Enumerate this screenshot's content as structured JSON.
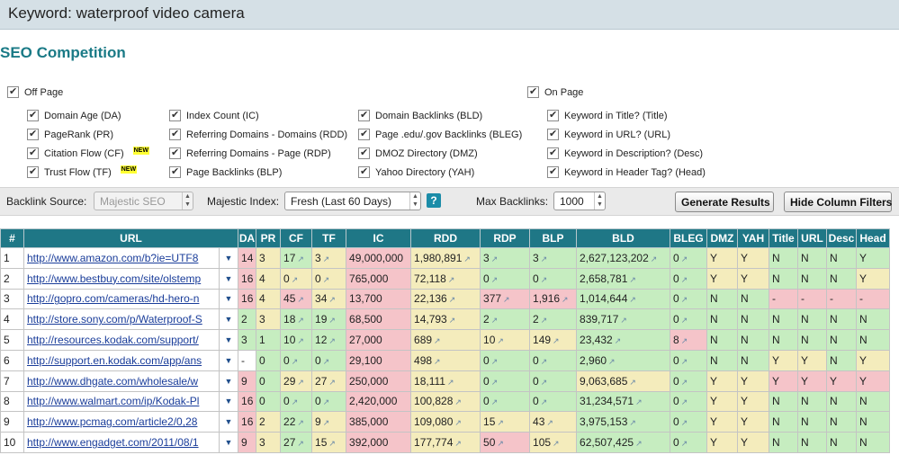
{
  "keyword_bar": {
    "label": "Keyword: waterproof video camera"
  },
  "title": "SEO Competition",
  "off_page": {
    "label": "Off Page",
    "options": [
      {
        "label": "Domain Age (DA)"
      },
      {
        "label": "PageRank (PR)"
      },
      {
        "label": "Citation Flow (CF)",
        "badge": "NEW"
      },
      {
        "label": "Trust Flow (TF)",
        "badge": "NEW"
      },
      {
        "label": "Index Count (IC)"
      },
      {
        "label": "Referring Domains - Domains (RDD)"
      },
      {
        "label": "Referring Domains - Page (RDP)"
      },
      {
        "label": "Page Backlinks (BLP)"
      },
      {
        "label": "Domain Backlinks (BLD)"
      },
      {
        "label": "Page .edu/.gov Backlinks (BLEG)"
      },
      {
        "label": "DMOZ Directory (DMZ)"
      },
      {
        "label": "Yahoo Directory (YAH)"
      }
    ]
  },
  "on_page": {
    "label": "On Page",
    "options": [
      {
        "label": "Keyword in Title? (Title)"
      },
      {
        "label": "Keyword in URL? (URL)"
      },
      {
        "label": "Keyword in Description? (Desc)"
      },
      {
        "label": "Keyword in Header Tag? (Head)"
      }
    ]
  },
  "toolbar": {
    "backlink_source_label": "Backlink Source:",
    "backlink_source_value": "Majestic SEO",
    "majestic_index_label": "Majestic Index:",
    "majestic_index_value": "Fresh (Last 60 Days)",
    "help": "?",
    "max_backlinks_label": "Max Backlinks:",
    "max_backlinks_value": "1000",
    "generate_button": "Generate Results",
    "hide_filters_button": "Hide Column Filters"
  },
  "table": {
    "headers": [
      "#",
      "URL",
      "DA",
      "PR",
      "CF",
      "TF",
      "IC",
      "RDD",
      "RDP",
      "BLP",
      "BLD",
      "BLEG",
      "DMZ",
      "YAH",
      "Title",
      "URL",
      "Desc",
      "Head"
    ],
    "arrow": "↗",
    "dropdown": "▼",
    "rows": [
      {
        "n": "1",
        "url": "http://www.amazon.com/b?ie=UTF8",
        "da": "14",
        "pr": "3",
        "cf": "17",
        "tf": "3",
        "ic": "49,000,000",
        "rdd": "1,980,891",
        "rdp": "3",
        "blp": "3",
        "bld": "2,627,123,202",
        "bleg": "0",
        "dmz": "Y",
        "yah": "Y",
        "title": "N",
        "urlk": "N",
        "desc": "N",
        "head": "Y"
      },
      {
        "n": "2",
        "url": "http://www.bestbuy.com/site/olstemp",
        "da": "16",
        "pr": "4",
        "cf": "0",
        "tf": "0",
        "ic": "765,000",
        "rdd": "72,118",
        "rdp": "0",
        "blp": "0",
        "bld": "2,658,781",
        "bleg": "0",
        "dmz": "Y",
        "yah": "Y",
        "title": "N",
        "urlk": "N",
        "desc": "N",
        "head": "Y"
      },
      {
        "n": "3",
        "url": "http://gopro.com/cameras/hd-hero-n",
        "da": "16",
        "pr": "4",
        "cf": "45",
        "tf": "34",
        "ic": "13,700",
        "rdd": "22,136",
        "rdp": "377",
        "blp": "1,916",
        "bld": "1,014,644",
        "bleg": "0",
        "dmz": "N",
        "yah": "N",
        "title": "-",
        "urlk": "-",
        "desc": "-",
        "head": "-"
      },
      {
        "n": "4",
        "url": "http://store.sony.com/p/Waterproof-S",
        "da": "2",
        "pr": "3",
        "cf": "18",
        "tf": "19",
        "ic": "68,500",
        "rdd": "14,793",
        "rdp": "2",
        "blp": "2",
        "bld": "839,717",
        "bleg": "0",
        "dmz": "N",
        "yah": "N",
        "title": "N",
        "urlk": "N",
        "desc": "N",
        "head": "N"
      },
      {
        "n": "5",
        "url": "http://resources.kodak.com/support/",
        "da": "3",
        "pr": "1",
        "cf": "10",
        "tf": "12",
        "ic": "27,000",
        "rdd": "689",
        "rdp": "10",
        "blp": "149",
        "bld": "23,432",
        "bleg": "8",
        "dmz": "N",
        "yah": "N",
        "title": "N",
        "urlk": "N",
        "desc": "N",
        "head": "N"
      },
      {
        "n": "6",
        "url": "http://support.en.kodak.com/app/ans",
        "da": "-",
        "pr": "0",
        "cf": "0",
        "tf": "0",
        "ic": "29,100",
        "rdd": "498",
        "rdp": "0",
        "blp": "0",
        "bld": "2,960",
        "bleg": "0",
        "dmz": "N",
        "yah": "N",
        "title": "Y",
        "urlk": "Y",
        "desc": "N",
        "head": "Y"
      },
      {
        "n": "7",
        "url": "http://www.dhgate.com/wholesale/w",
        "da": "9",
        "pr": "0",
        "cf": "29",
        "tf": "27",
        "ic": "250,000",
        "rdd": "18,111",
        "rdp": "0",
        "blp": "0",
        "bld": "9,063,685",
        "bleg": "0",
        "dmz": "Y",
        "yah": "Y",
        "title": "Y",
        "urlk": "Y",
        "desc": "Y",
        "head": "Y"
      },
      {
        "n": "8",
        "url": "http://www.walmart.com/ip/Kodak-Pl",
        "da": "16",
        "pr": "0",
        "cf": "0",
        "tf": "0",
        "ic": "2,420,000",
        "rdd": "100,828",
        "rdp": "0",
        "blp": "0",
        "bld": "31,234,571",
        "bleg": "0",
        "dmz": "Y",
        "yah": "Y",
        "title": "N",
        "urlk": "N",
        "desc": "N",
        "head": "N"
      },
      {
        "n": "9",
        "url": "http://www.pcmag.com/article2/0,28",
        "da": "16",
        "pr": "2",
        "cf": "22",
        "tf": "9",
        "ic": "385,000",
        "rdd": "109,080",
        "rdp": "15",
        "blp": "43",
        "bld": "3,975,153",
        "bleg": "0",
        "dmz": "Y",
        "yah": "Y",
        "title": "N",
        "urlk": "N",
        "desc": "N",
        "head": "N"
      },
      {
        "n": "10",
        "url": "http://www.engadget.com/2011/08/1",
        "da": "9",
        "pr": "3",
        "cf": "27",
        "tf": "15",
        "ic": "392,000",
        "rdd": "177,774",
        "rdp": "50",
        "blp": "105",
        "bld": "62,507,425",
        "bleg": "0",
        "dmz": "Y",
        "yah": "Y",
        "title": "N",
        "urlk": "N",
        "desc": "N",
        "head": "N"
      }
    ],
    "cell_colors": {
      "green": "#c6edc0",
      "yellow": "#f4ecbc",
      "red": "#f5c4c9",
      "header": "#1f7786"
    }
  }
}
